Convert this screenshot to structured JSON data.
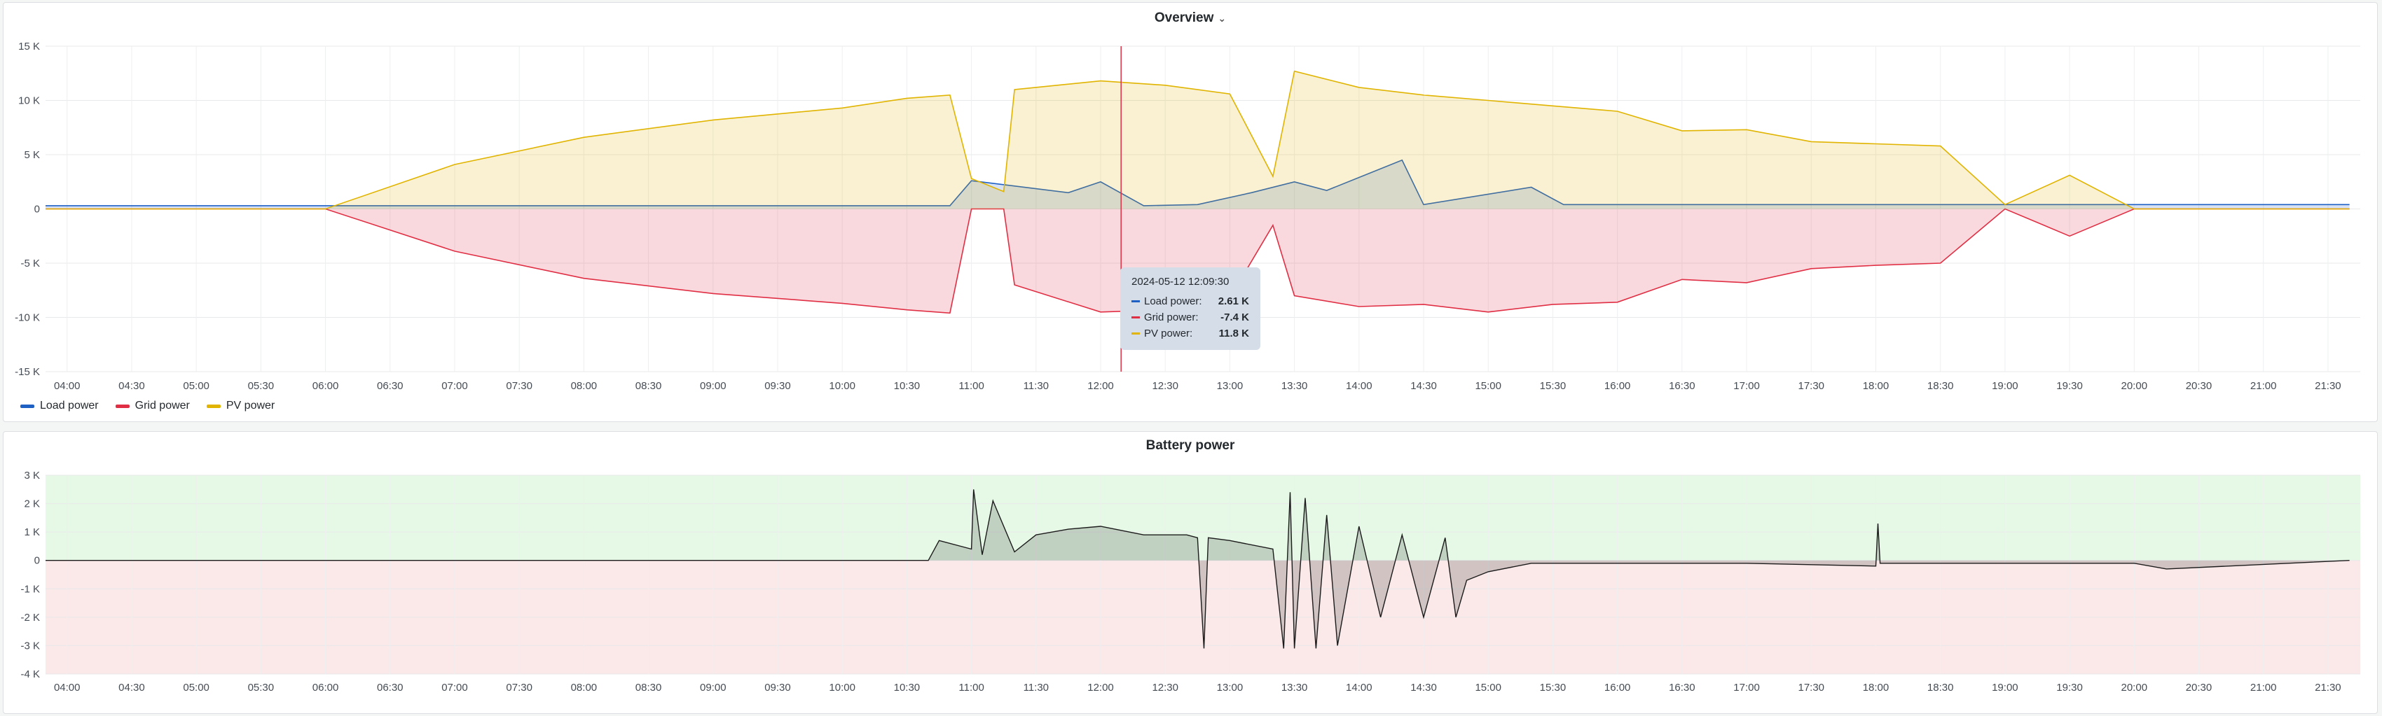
{
  "overview": {
    "title": "Overview",
    "chevron": "⌄",
    "legend": [
      {
        "label": "Load power",
        "color": "#1f60c4"
      },
      {
        "label": "Grid power",
        "color": "#e02f44"
      },
      {
        "label": "PV power",
        "color": "#e0b400"
      }
    ],
    "tooltip": {
      "time": "2024-05-12 12:09:30",
      "rows": [
        {
          "label": "Load power:",
          "value": "2.61 K",
          "color": "#1f60c4"
        },
        {
          "label": "Grid power:",
          "value": "-7.4 K",
          "color": "#e02f44"
        },
        {
          "label": "PV power:",
          "value": "11.8 K",
          "color": "#e0b400"
        }
      ]
    }
  },
  "battery": {
    "title": "Battery power"
  },
  "chart_data": [
    {
      "type": "area",
      "title": "Overview",
      "x_ticks": [
        "04:00",
        "04:30",
        "05:00",
        "05:30",
        "06:00",
        "06:30",
        "07:00",
        "07:30",
        "08:00",
        "08:30",
        "09:00",
        "09:30",
        "10:00",
        "10:30",
        "11:00",
        "11:30",
        "12:00",
        "12:30",
        "13:00",
        "13:30",
        "14:00",
        "14:30",
        "15:00",
        "15:30",
        "16:00",
        "16:30",
        "17:00",
        "17:30",
        "18:00",
        "18:30",
        "19:00",
        "19:30",
        "20:00",
        "20:30",
        "21:00",
        "21:30"
      ],
      "y_ticks": [
        "15 K",
        "10 K",
        "5 K",
        "0",
        "-5 K",
        "-10 K",
        "-15 K"
      ],
      "ylim": [
        -15000,
        15000
      ],
      "grid": true,
      "legend_position": "bottom-left",
      "cursor_time": "12:09:30",
      "series": [
        {
          "name": "Load power",
          "color": "#1f60c4",
          "x": [
            "03:50",
            "06:00",
            "10:50",
            "11:00",
            "11:45",
            "12:00",
            "12:20",
            "12:45",
            "13:10",
            "13:30",
            "13:45",
            "14:20",
            "14:30",
            "15:20",
            "15:35",
            "16:00",
            "18:00",
            "20:00",
            "21:40"
          ],
          "y": [
            300,
            300,
            300,
            2600,
            1500,
            2500,
            300,
            400,
            1500,
            2500,
            1700,
            4500,
            400,
            2000,
            400,
            400,
            400,
            400,
            400
          ]
        },
        {
          "name": "Grid power",
          "color": "#e02f44",
          "x": [
            "03:50",
            "06:00",
            "07:00",
            "08:00",
            "09:00",
            "10:00",
            "10:30",
            "10:50",
            "11:00",
            "11:15",
            "11:20",
            "12:00",
            "12:30",
            "13:00",
            "13:20",
            "13:30",
            "14:00",
            "14:30",
            "15:00",
            "15:30",
            "16:00",
            "16:30",
            "17:00",
            "17:30",
            "18:00",
            "18:30",
            "19:00",
            "19:30",
            "20:00",
            "21:40"
          ],
          "y": [
            0,
            0,
            -3900,
            -6400,
            -7800,
            -8700,
            -9300,
            -9600,
            0,
            0,
            -7000,
            -9500,
            -9300,
            -8200,
            -1500,
            -8000,
            -9000,
            -8800,
            -9500,
            -8800,
            -8600,
            -6500,
            -6800,
            -5500,
            -5200,
            -5000,
            0,
            -2500,
            0,
            0
          ]
        },
        {
          "name": "PV power",
          "color": "#e0b400",
          "x": [
            "03:50",
            "06:00",
            "07:00",
            "08:00",
            "09:00",
            "10:00",
            "10:30",
            "10:50",
            "11:00",
            "11:15",
            "11:20",
            "12:00",
            "12:30",
            "13:00",
            "13:20",
            "13:30",
            "14:00",
            "14:30",
            "15:00",
            "15:30",
            "16:00",
            "16:30",
            "17:00",
            "17:30",
            "18:00",
            "18:30",
            "19:00",
            "19:30",
            "20:00",
            "21:40"
          ],
          "y": [
            0,
            0,
            4100,
            6600,
            8200,
            9300,
            10200,
            10500,
            2800,
            1600,
            11000,
            11800,
            11400,
            10600,
            3000,
            12700,
            11200,
            10500,
            10000,
            9500,
            9000,
            7200,
            7300,
            6200,
            6000,
            5800,
            400,
            3100,
            0,
            0
          ]
        }
      ]
    },
    {
      "type": "area",
      "title": "Battery power",
      "x_ticks": [
        "04:00",
        "04:30",
        "05:00",
        "05:30",
        "06:00",
        "06:30",
        "07:00",
        "07:30",
        "08:00",
        "08:30",
        "09:00",
        "09:30",
        "10:00",
        "10:30",
        "11:00",
        "11:30",
        "12:00",
        "12:30",
        "13:00",
        "13:30",
        "14:00",
        "14:30",
        "15:00",
        "15:30",
        "16:00",
        "16:30",
        "17:00",
        "17:30",
        "18:00",
        "18:30",
        "19:00",
        "19:30",
        "20:00",
        "20:30",
        "21:00",
        "21:30"
      ],
      "y_ticks": [
        "3 K",
        "2 K",
        "1 K",
        "0",
        "-1 K",
        "-2 K",
        "-3 K",
        "-4 K"
      ],
      "ylim": [
        -4000,
        3000
      ],
      "grid": true,
      "thresholds": [
        {
          "range": [
            0,
            3000
          ],
          "color": "#e6f9e6"
        },
        {
          "range": [
            -4000,
            0
          ],
          "color": "#fbe8e8"
        }
      ],
      "series": [
        {
          "name": "Battery power",
          "color": "#1b1b1b",
          "x": [
            "03:50",
            "10:40",
            "10:45",
            "11:00",
            "11:01",
            "11:05",
            "11:10",
            "11:20",
            "11:30",
            "11:45",
            "12:00",
            "12:20",
            "12:40",
            "12:45",
            "12:48",
            "12:50",
            "13:00",
            "13:20",
            "13:25",
            "13:28",
            "13:30",
            "13:35",
            "13:40",
            "13:45",
            "13:50",
            "14:00",
            "14:10",
            "14:20",
            "14:30",
            "14:40",
            "14:45",
            "14:50",
            "15:00",
            "15:20",
            "16:00",
            "17:00",
            "18:00",
            "18:01",
            "18:02",
            "19:00",
            "20:00",
            "20:15",
            "21:40"
          ],
          "y": [
            0,
            0,
            700,
            400,
            2500,
            200,
            2100,
            300,
            900,
            1100,
            1200,
            900,
            900,
            800,
            -3100,
            800,
            700,
            400,
            -3100,
            2400,
            -3100,
            2200,
            -3100,
            1600,
            -3000,
            1200,
            -2000,
            900,
            -2000,
            800,
            -2000,
            -700,
            -400,
            -100,
            -100,
            -100,
            -200,
            1300,
            -100,
            -100,
            -100,
            -300,
            0
          ]
        }
      ]
    }
  ]
}
